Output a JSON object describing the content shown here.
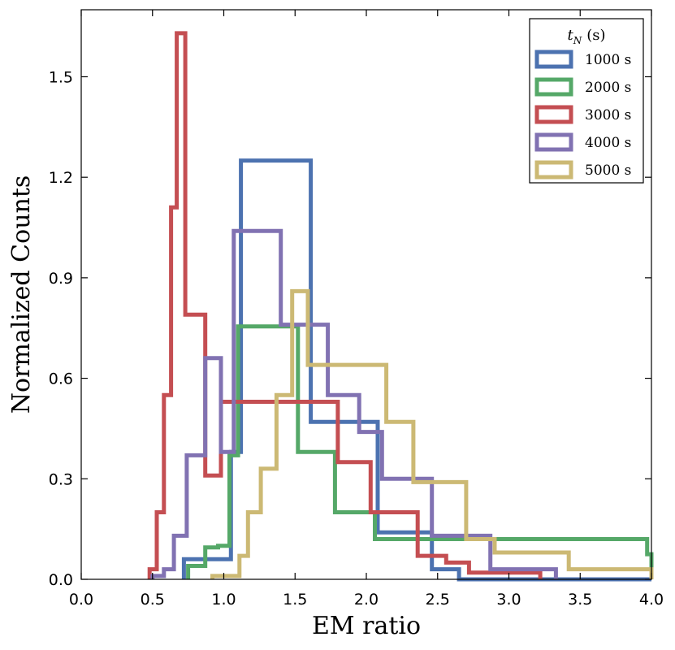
{
  "chart_data": {
    "type": "histogram-step",
    "xlabel": "EM ratio",
    "ylabel": "Normalized Counts",
    "xlim": [
      0.0,
      4.0
    ],
    "ylim": [
      0.0,
      1.7
    ],
    "xticks": [
      "0.0",
      "0.5",
      "1.0",
      "1.5",
      "2.0",
      "2.5",
      "3.0",
      "3.5",
      "4.0"
    ],
    "yticks": [
      "0.0",
      "0.3",
      "0.6",
      "0.9",
      "1.2",
      "1.5"
    ],
    "grid": false,
    "legend": {
      "title_var": "t",
      "title_sub": "N",
      "title_unit": "(s)",
      "position": "top-right"
    },
    "series": [
      {
        "name": "1000 s",
        "color": "#4c72b0",
        "edges": [
          0.72,
          0.9,
          1.05,
          1.12,
          1.61,
          1.76,
          2.08,
          2.46,
          2.65,
          4.0
        ],
        "values": [
          0.06,
          0.06,
          0.38,
          1.25,
          0.47,
          0.47,
          0.14,
          0.03,
          0.0
        ]
      },
      {
        "name": "2000 s",
        "color": "#55a868",
        "edges": [
          0.75,
          0.87,
          0.96,
          1.04,
          1.1,
          1.52,
          1.78,
          2.06,
          3.97,
          4.0
        ],
        "values": [
          0.04,
          0.095,
          0.1,
          0.37,
          0.755,
          0.38,
          0.2,
          0.12,
          0.075
        ]
      },
      {
        "name": "3000 s",
        "color": "#c44e52",
        "edges": [
          0.48,
          0.53,
          0.58,
          0.63,
          0.67,
          0.73,
          0.87,
          0.98,
          1.27,
          1.46,
          1.8,
          2.03,
          2.36,
          2.56,
          2.72,
          3.22
        ],
        "values": [
          0.03,
          0.2,
          0.55,
          1.11,
          1.63,
          0.79,
          0.31,
          0.53,
          0.53,
          0.53,
          0.35,
          0.2,
          0.07,
          0.05,
          0.02
        ]
      },
      {
        "name": "4000 s",
        "color": "#8172b2",
        "edges": [
          0.5,
          0.58,
          0.65,
          0.74,
          0.87,
          0.98,
          1.07,
          1.4,
          1.73,
          1.95,
          2.11,
          2.46,
          2.67,
          2.87,
          3.33
        ],
        "values": [
          0.01,
          0.03,
          0.13,
          0.37,
          0.66,
          0.38,
          1.04,
          0.76,
          0.55,
          0.44,
          0.3,
          0.13,
          0.13,
          0.03
        ]
      },
      {
        "name": "5000 s",
        "color": "#ccb974",
        "edges": [
          0.92,
          1.11,
          1.17,
          1.26,
          1.37,
          1.48,
          1.59,
          2.14,
          2.33,
          2.53,
          2.7,
          2.9,
          3.42,
          4.0
        ],
        "values": [
          0.01,
          0.07,
          0.2,
          0.33,
          0.55,
          0.86,
          0.64,
          0.47,
          0.29,
          0.29,
          0.12,
          0.08,
          0.03
        ]
      }
    ]
  }
}
